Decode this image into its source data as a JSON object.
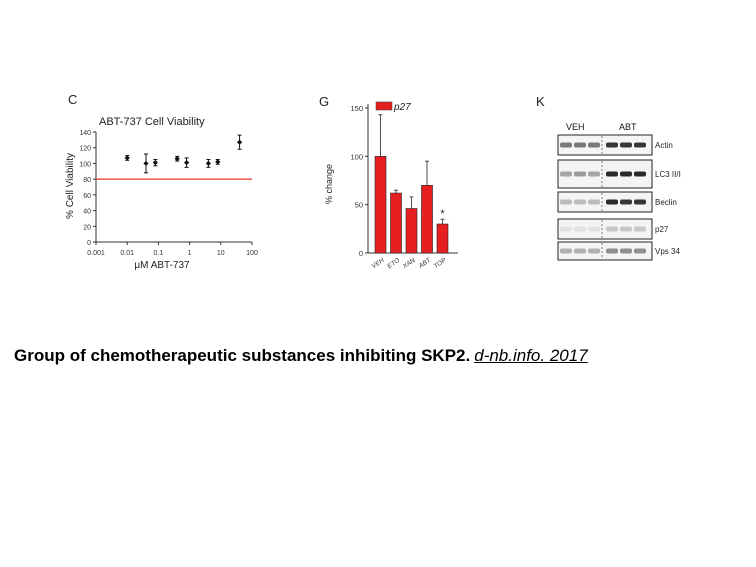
{
  "panels": {
    "c": {
      "letter": "C"
    },
    "g": {
      "letter": "G"
    },
    "k": {
      "letter": "K"
    }
  },
  "chart_data": [
    {
      "type": "scatter",
      "title": "ABT-737 Cell Viability",
      "xlabel": "μM ABT-737",
      "ylabel": "% Cell Viability",
      "x_scale": "log",
      "xlim": [
        0.001,
        100
      ],
      "ylim": [
        0,
        140
      ],
      "x_tick_labels": [
        "0.001",
        "0.01",
        "0.1",
        "1",
        "10",
        "100"
      ],
      "y_tick_labels": [
        "0",
        "20",
        "40",
        "60",
        "80",
        "100",
        "120",
        "140"
      ],
      "points": [
        {
          "x": 0.01,
          "y": 107,
          "err": 3
        },
        {
          "x": 0.04,
          "y": 100,
          "err": 12
        },
        {
          "x": 0.08,
          "y": 101,
          "err": 4
        },
        {
          "x": 0.4,
          "y": 106,
          "err": 3
        },
        {
          "x": 0.8,
          "y": 101,
          "err": 6
        },
        {
          "x": 4,
          "y": 100,
          "err": 5
        },
        {
          "x": 8,
          "y": 102,
          "err": 3
        },
        {
          "x": 40,
          "y": 127,
          "err": 9
        }
      ],
      "reference_line": {
        "y": 80,
        "color": "#e8322a"
      },
      "grid": false
    },
    {
      "type": "bar",
      "ylabel": "% change",
      "ylim": [
        0,
        150
      ],
      "y_tick_labels": [
        "0",
        "50",
        "100",
        "150"
      ],
      "categories": [
        "VEH",
        "ETO",
        "XAN",
        "ABT",
        "TOP"
      ],
      "series": [
        {
          "name": "p27",
          "color": "#e62020",
          "values": [
            100,
            62,
            46,
            70,
            30
          ],
          "errors": [
            43,
            3,
            12,
            25,
            5
          ]
        }
      ],
      "annotations": [
        {
          "category": "TOP",
          "text": "*"
        }
      ],
      "legend": "top-left",
      "grid": false
    }
  ],
  "blot": {
    "groups": [
      "VEH",
      "ABT"
    ],
    "rows": [
      {
        "label": "Actin"
      },
      {
        "label": "LC3 II/I"
      },
      {
        "label": "Beclin"
      },
      {
        "label": "p27"
      },
      {
        "label": "Vps 34"
      }
    ]
  },
  "caption": {
    "text": "Group of chemotherapeutic substances inhibiting SKP2.",
    "source": "d-nb.info. 2017"
  }
}
